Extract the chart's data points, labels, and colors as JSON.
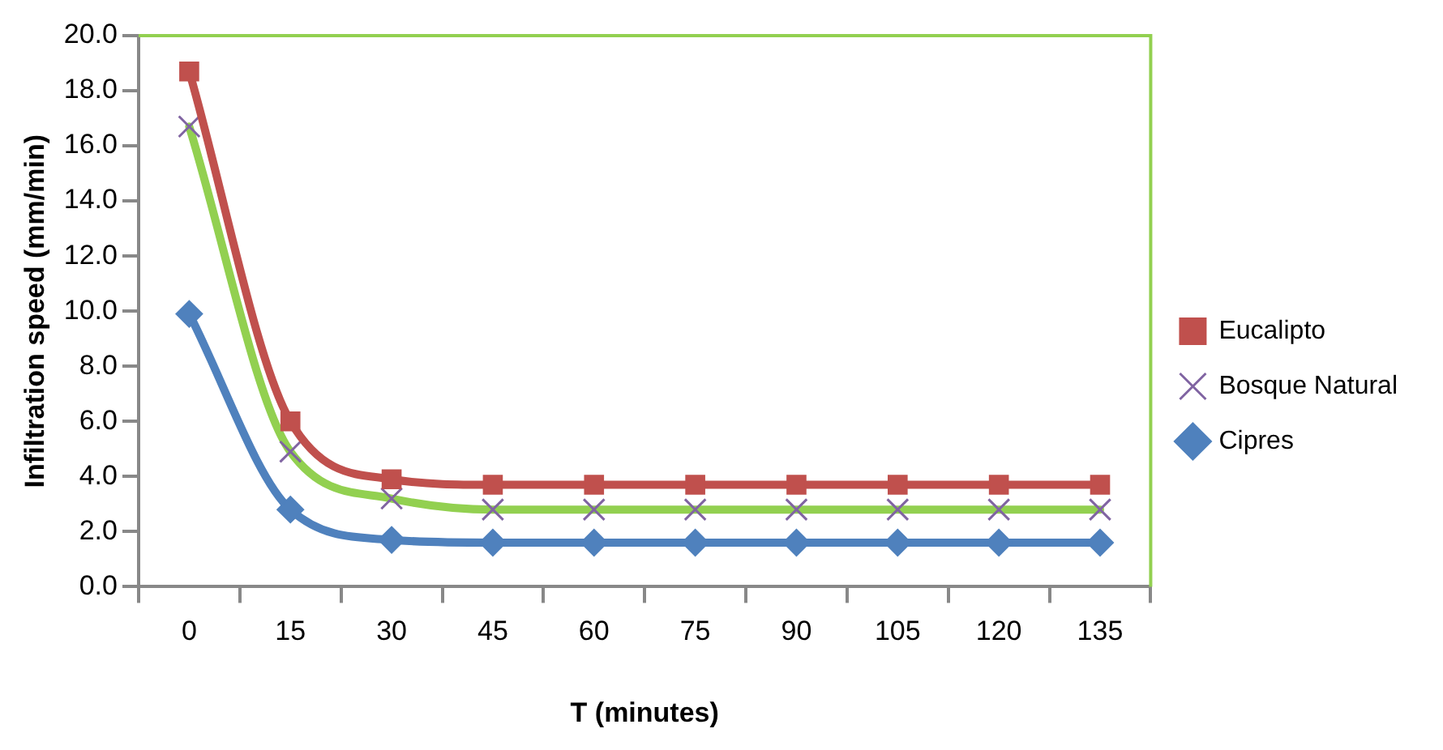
{
  "chart_data": {
    "type": "line",
    "xlabel": "T (minutes)",
    "ylabel": "Infiltration speed (mm/min)",
    "categories": [
      "0",
      "15",
      "30",
      "45",
      "60",
      "75",
      "90",
      "105",
      "120",
      "135"
    ],
    "series": [
      {
        "name": "Eucalipto",
        "color": "#c0504d",
        "marker": "square",
        "values": [
          18.7,
          6.0,
          3.9,
          3.7,
          3.7,
          3.7,
          3.7,
          3.7,
          3.7,
          3.7
        ]
      },
      {
        "name": "Bosque Natural",
        "color": "#92d050",
        "marker": "cross",
        "values": [
          16.7,
          4.9,
          3.2,
          2.8,
          2.8,
          2.8,
          2.8,
          2.8,
          2.8,
          2.8
        ]
      },
      {
        "name": "Cipres",
        "color": "#4f81bd",
        "marker": "diamond",
        "values": [
          9.9,
          2.8,
          1.7,
          1.6,
          1.6,
          1.6,
          1.6,
          1.6,
          1.6,
          1.6
        ]
      }
    ],
    "ylim": [
      0,
      20
    ],
    "yticks": [
      {
        "value": 0,
        "label": "0.0"
      },
      {
        "value": 2,
        "label": "2.0"
      },
      {
        "value": 4,
        "label": "4.0"
      },
      {
        "value": 6,
        "label": "6.0"
      },
      {
        "value": 8,
        "label": "8.0"
      },
      {
        "value": 10,
        "label": "10.0"
      },
      {
        "value": 12,
        "label": "12.0"
      },
      {
        "value": 14,
        "label": "14.0"
      },
      {
        "value": 16,
        "label": "16.0"
      },
      {
        "value": 18,
        "label": "18.0"
      },
      {
        "value": 20,
        "label": "20.0"
      }
    ],
    "grid": false,
    "legend": "right"
  }
}
